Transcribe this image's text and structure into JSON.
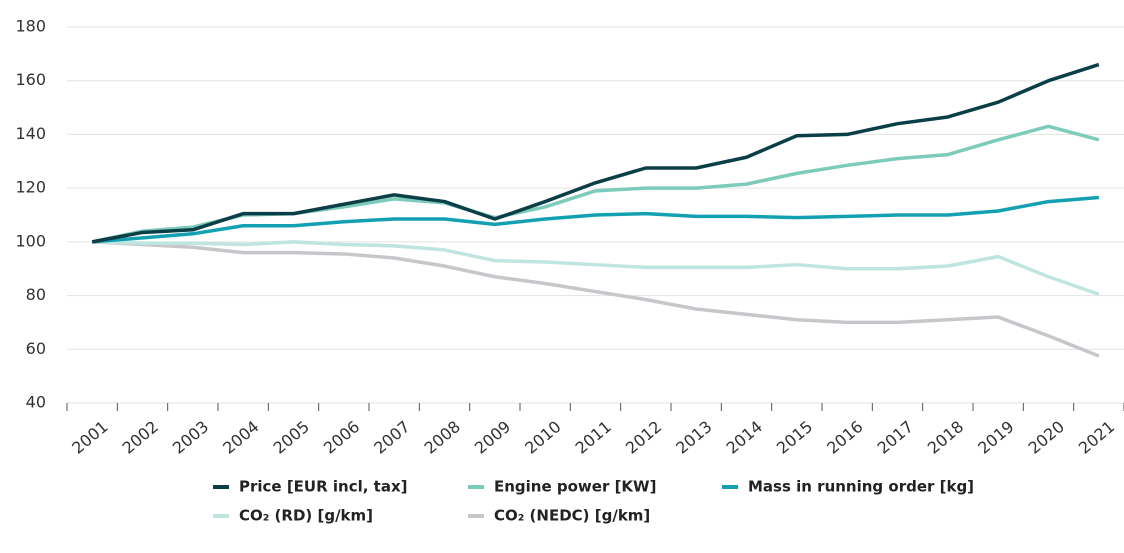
{
  "chart_data": {
    "type": "line",
    "categories": [
      "2001",
      "2002",
      "2003",
      "2004",
      "2005",
      "2006",
      "2007",
      "2008",
      "2009",
      "2010",
      "2011",
      "2012",
      "2013",
      "2014",
      "2015",
      "2016",
      "2017",
      "2018",
      "2019",
      "2020",
      "2021"
    ],
    "series": [
      {
        "name": "Price [EUR incl, tax]",
        "color": "#0b3f47",
        "values": [
          100,
          103.5,
          104.5,
          110.5,
          110.5,
          114,
          117.5,
          115,
          108.5,
          115,
          122,
          127.5,
          127.5,
          131.5,
          139.5,
          140,
          144,
          146.5,
          152,
          160,
          166
        ]
      },
      {
        "name": "Engine power [KW]",
        "color": "#7dcbbb",
        "values": [
          100,
          104,
          105.5,
          110,
          110.5,
          113,
          116,
          114.5,
          109,
          113,
          119,
          120,
          120,
          121.5,
          125.5,
          128.5,
          131,
          132.5,
          138,
          143,
          138
        ]
      },
      {
        "name": "Mass in running order [kg]",
        "color": "#13a1b2",
        "values": [
          100,
          101.5,
          103,
          106,
          106,
          107.5,
          108.5,
          108.5,
          106.5,
          108.5,
          110,
          110.5,
          109.5,
          109.5,
          109,
          109.5,
          110,
          110,
          111.5,
          115,
          116.5
        ]
      },
      {
        "name": "CO₂ (RD) [g/km]",
        "color": "#bfe5e0",
        "values": [
          100,
          99.5,
          99.5,
          99,
          100,
          99,
          98.5,
          97,
          93,
          92.5,
          91.5,
          90.5,
          90.5,
          90.5,
          91.5,
          90,
          90,
          91,
          94.5,
          87,
          80.5
        ]
      },
      {
        "name": "CO₂ (NEDC) [g/km]",
        "color": "#c7c7cb",
        "values": [
          100,
          99,
          98,
          96,
          96,
          95.5,
          94,
          91,
          87,
          84.5,
          81.5,
          78.5,
          75,
          73,
          71,
          70,
          70,
          71,
          72,
          65,
          57.5
        ]
      }
    ],
    "ylim": [
      40,
      180
    ],
    "yticks": [
      40,
      60,
      80,
      100,
      120,
      140,
      160,
      180
    ],
    "grid": true
  }
}
